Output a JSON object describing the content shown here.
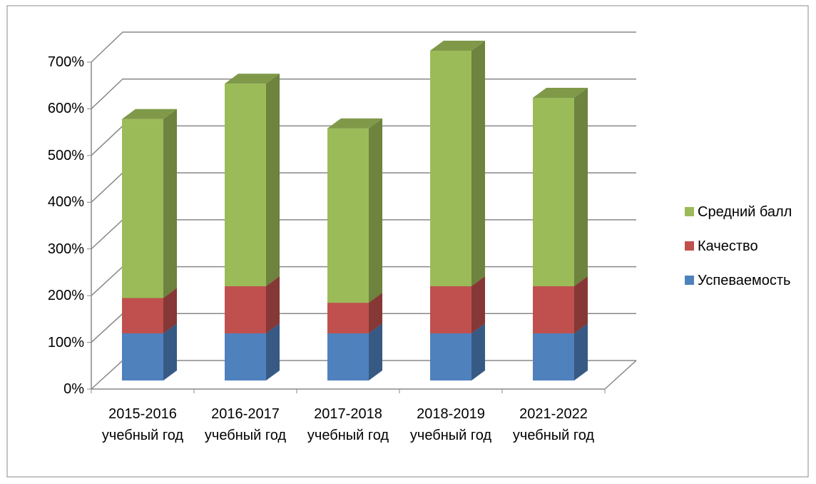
{
  "chart_data": {
    "type": "bar3d_stacked",
    "categories": [
      "2015-2016 учебный год",
      "2016-2017 учебный год",
      "2017-2018 учебный год",
      "2018-2019 учебный год",
      "2021-2022 учебный год"
    ],
    "series": [
      {
        "name": "Успеваемость",
        "color": "#4f81bd",
        "values": [
          100,
          100,
          100,
          100,
          100
        ]
      },
      {
        "name": "Качество",
        "color": "#c0504d",
        "values": [
          75,
          100,
          65,
          100,
          100
        ]
      },
      {
        "name": "Средний балл",
        "color": "#9bbb59",
        "values": [
          380,
          430,
          370,
          500,
          400
        ]
      }
    ],
    "ylim": [
      0,
      700
    ],
    "yticks": [
      {
        "value": 0,
        "label": "0%"
      },
      {
        "value": 100,
        "label": "100%"
      },
      {
        "value": 200,
        "label": "200%"
      },
      {
        "value": 300,
        "label": "300%"
      },
      {
        "value": 400,
        "label": "400%"
      },
      {
        "value": 500,
        "label": "500%"
      },
      {
        "value": 600,
        "label": "600%"
      },
      {
        "value": 700,
        "label": "700%"
      }
    ],
    "grid": true,
    "legend": "right"
  }
}
